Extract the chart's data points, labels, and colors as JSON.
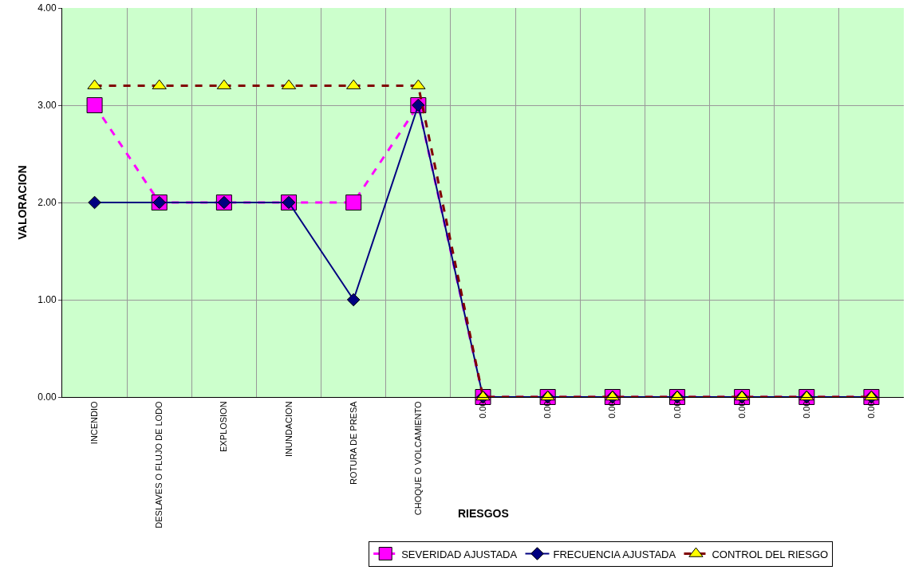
{
  "chart_data": {
    "type": "line",
    "xlabel": "RIESGOS",
    "ylabel": "VALORACION",
    "categories": [
      "INCENDIO",
      "DESLAVES O FLUJO DE LODO",
      "EXPLOSION",
      "INUNDACION",
      "ROTURA DE PRESA",
      "CHOQUE O VOLCAMIENTO",
      "0.00",
      "0.00",
      "0.00",
      "0.00",
      "0.00",
      "0.00",
      "0.00"
    ],
    "series": [
      {
        "name": "SEVERIDAD AJUSTADA",
        "color": "#ff00ff",
        "marker": "square",
        "line_style": "dashed",
        "values": [
          3,
          2,
          2,
          2,
          2,
          3,
          0,
          0,
          0,
          0,
          0,
          0,
          0
        ]
      },
      {
        "name": "FRECUENCIA AJUSTADA",
        "color": "#000080",
        "marker": "diamond",
        "line_style": "solid",
        "values": [
          2,
          2,
          2,
          2,
          1,
          3,
          0,
          0,
          0,
          0,
          0,
          0,
          0
        ]
      },
      {
        "name": "CONTROL DEL RIESGO",
        "color": "#800000",
        "colors": [
          "#ffff00",
          "#ffff00",
          "#ffff00",
          "#ffff00",
          "#ffff00",
          "#ffff00",
          "#ffff00",
          "#ffff00",
          "#ffff00",
          "#ffff00",
          "#ffff00",
          "#ffff00",
          "#ffff00"
        ],
        "marker": "triangle",
        "line_style": "dashed",
        "values": [
          3.2,
          3.2,
          3.2,
          3.2,
          3.2,
          3.2,
          0,
          0,
          0,
          0,
          0,
          0,
          0
        ]
      }
    ],
    "ylim": [
      0,
      4
    ],
    "yticks": [
      {
        "value": 0,
        "label": "0.00"
      },
      {
        "value": 1,
        "label": "1.00"
      },
      {
        "value": 2,
        "label": "2.00"
      },
      {
        "value": 3,
        "label": "3.00"
      },
      {
        "value": 4,
        "label": "4.00"
      }
    ],
    "grid": true,
    "legend": "bottom"
  }
}
